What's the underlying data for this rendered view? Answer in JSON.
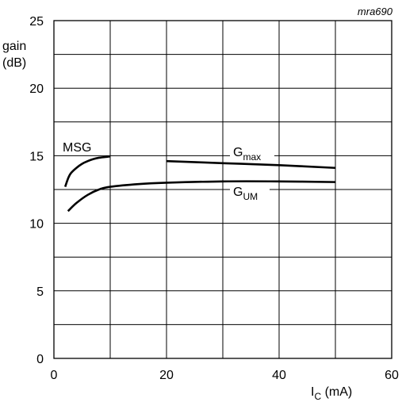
{
  "chart_data": {
    "type": "line",
    "code_label": "mra690",
    "ylabel_line1": "gain",
    "ylabel_line2": "(dB)",
    "xlabel_main": "I",
    "xlabel_sub": "C",
    "xlabel_unit": " (mA)",
    "xlim": [
      0,
      60
    ],
    "ylim": [
      0,
      25
    ],
    "x_ticks": [
      0,
      20,
      40,
      60
    ],
    "y_ticks": [
      0,
      5,
      10,
      15,
      20,
      25
    ],
    "grid": true,
    "series": [
      {
        "label_main": "MSG",
        "x": [
          2,
          2.5,
          3,
          4,
          5,
          6,
          7,
          8,
          9,
          10
        ],
        "y": [
          12.7,
          13.3,
          13.7,
          14.1,
          14.4,
          14.6,
          14.75,
          14.85,
          14.9,
          14.95
        ]
      },
      {
        "label_main": "G",
        "label_sub": "max",
        "x": [
          20,
          30,
          40,
          50
        ],
        "y": [
          14.6,
          14.45,
          14.3,
          14.1
        ]
      },
      {
        "label_main": "G",
        "label_sub": "UM",
        "x": [
          2.5,
          4,
          6,
          8,
          10,
          15,
          20,
          30,
          40,
          50
        ],
        "y": [
          10.9,
          11.5,
          12.1,
          12.5,
          12.7,
          12.9,
          13.0,
          13.1,
          13.1,
          13.05
        ]
      }
    ]
  }
}
